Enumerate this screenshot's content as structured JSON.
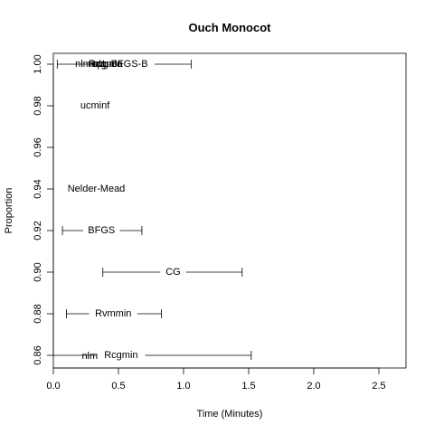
{
  "chart_data": {
    "type": "scatter",
    "title": "Ouch Monocot",
    "xlabel": "Time (Minutes)",
    "ylabel": "Proportion",
    "xlim": [
      0,
      2.7
    ],
    "ylim": [
      0.853,
      1.005
    ],
    "xticks": [
      0.0,
      0.5,
      1.0,
      1.5,
      2.0,
      2.5
    ],
    "xtick_labels": [
      "0.0",
      "0.5",
      "1.0",
      "1.5",
      "2.0",
      "2.5"
    ],
    "yticks": [
      0.86,
      0.88,
      0.9,
      0.92,
      0.94,
      0.96,
      0.98,
      1.0
    ],
    "ytick_labels": [
      "0.86",
      "0.88",
      "0.90",
      "0.92",
      "0.94",
      "0.96",
      "0.98",
      "1.00"
    ],
    "points": [
      {
        "label": "Rcgmin",
        "x": 0.52,
        "y": 0.86,
        "lo": 0.0,
        "hi": 1.52
      },
      {
        "label": "nlm",
        "x": 0.28,
        "y": 0.8595,
        "lo": null,
        "hi": null
      },
      {
        "label": "Rvmmin",
        "x": 0.46,
        "y": 0.88,
        "lo": 0.1,
        "hi": 0.83
      },
      {
        "label": "CG",
        "x": 0.92,
        "y": 0.9,
        "lo": 0.38,
        "hi": 1.45
      },
      {
        "label": "BFGS",
        "x": 0.37,
        "y": 0.92,
        "lo": 0.07,
        "hi": 0.68
      },
      {
        "label": "Nelder-Mead",
        "x": 0.33,
        "y": 0.94,
        "lo": null,
        "hi": null
      },
      {
        "label": "ucminf",
        "x": 0.32,
        "y": 0.98,
        "lo": null,
        "hi": null
      },
      {
        "label": "L-BFGS-B",
        "x": 0.55,
        "y": 1.0,
        "lo": 0.03,
        "hi": 1.06
      },
      {
        "label": "nlminb",
        "x": 0.28,
        "y": 1.0,
        "lo": null,
        "hi": null
      },
      {
        "label": "spg",
        "x": 0.36,
        "y": 1.0,
        "lo": null,
        "hi": null
      },
      {
        "label": "Rcgmin",
        "x": 0.4,
        "y": 1.0,
        "lo": null,
        "hi": null
      },
      {
        "label": "newuoa",
        "x": 0.4,
        "y": 1.0,
        "lo": null,
        "hi": null
      }
    ]
  }
}
